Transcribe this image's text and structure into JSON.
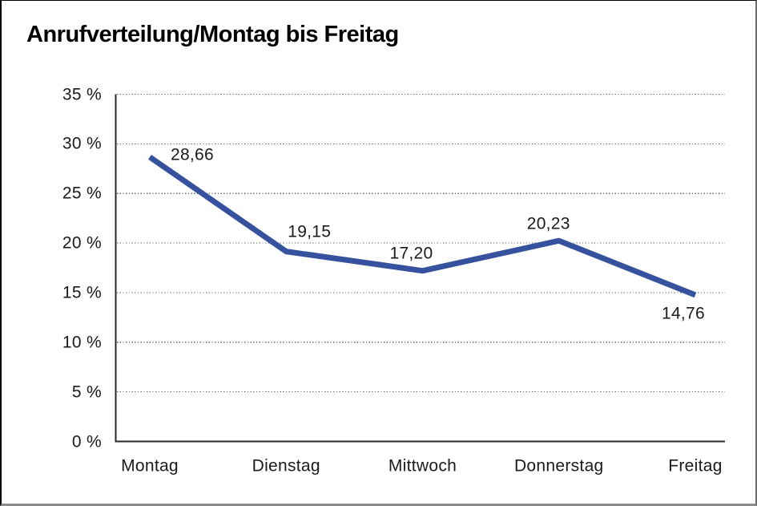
{
  "chart_data": {
    "type": "line",
    "title": "Anrufverteilung/Montag bis Freitag",
    "categories": [
      "Montag",
      "Dienstag",
      "Mittwoch",
      "Donnerstag",
      "Freitag"
    ],
    "series": [
      {
        "name": "Anrufverteilung",
        "values": [
          28.66,
          19.15,
          17.2,
          20.23,
          14.76
        ]
      }
    ],
    "point_labels": [
      "28,66",
      "19,15",
      "17,20",
      "20,23",
      "14,76"
    ],
    "xlabel": "",
    "ylabel": "",
    "ylim": [
      0,
      35
    ],
    "ytick_step": 5,
    "ytick_labels": [
      "0 %",
      "5 %",
      "10 %",
      "15 %",
      "20 %",
      "25 %",
      "30 %",
      "35 %"
    ],
    "grid": "horizontal-dotted",
    "legend": "none",
    "line_color": "#36529F",
    "grid_color": "#666666",
    "axis_color": "#262626",
    "text_color": "#1a1a1a"
  }
}
